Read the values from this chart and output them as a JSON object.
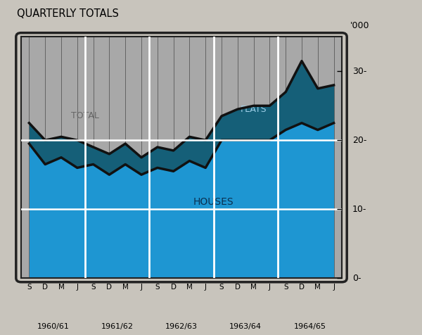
{
  "title": "QUARTERLY TOTALS",
  "ylim": [
    0,
    35
  ],
  "yticks": [
    0,
    10,
    20,
    30
  ],
  "ytick_labels": [
    "0-",
    "10-",
    "20-",
    "30-"
  ],
  "quarters": [
    "S",
    "D",
    "M",
    "J",
    "S",
    "D",
    "M",
    "J",
    "S",
    "D",
    "M",
    "J",
    "S",
    "D",
    "M",
    "J",
    "S",
    "D",
    "M",
    "J"
  ],
  "year_labels": [
    "1960/61",
    "1961/62",
    "1962/63",
    "1963/64",
    "1964/65"
  ],
  "houses": [
    19.5,
    16.5,
    17.5,
    16.0,
    16.5,
    15.0,
    16.5,
    15.0,
    16.0,
    15.5,
    17.0,
    16.0,
    20.0,
    20.0,
    20.0,
    20.0,
    21.5,
    22.5,
    21.5,
    22.5
  ],
  "flats": [
    3.0,
    3.5,
    3.0,
    4.0,
    2.5,
    3.0,
    3.0,
    2.5,
    3.0,
    3.0,
    3.5,
    4.0,
    3.5,
    4.5,
    5.0,
    5.0,
    5.5,
    9.0,
    6.0,
    5.5
  ],
  "color_houses": "#1e96d2",
  "color_flats": "#155f78",
  "color_bg_gray": "#a8a8a8",
  "color_fig_bg": "#c8c4bc",
  "color_border": "#222222",
  "label_total_color": "#666666",
  "label_flats_color": "#9ecfe8",
  "label_houses_color": "#0a3050"
}
